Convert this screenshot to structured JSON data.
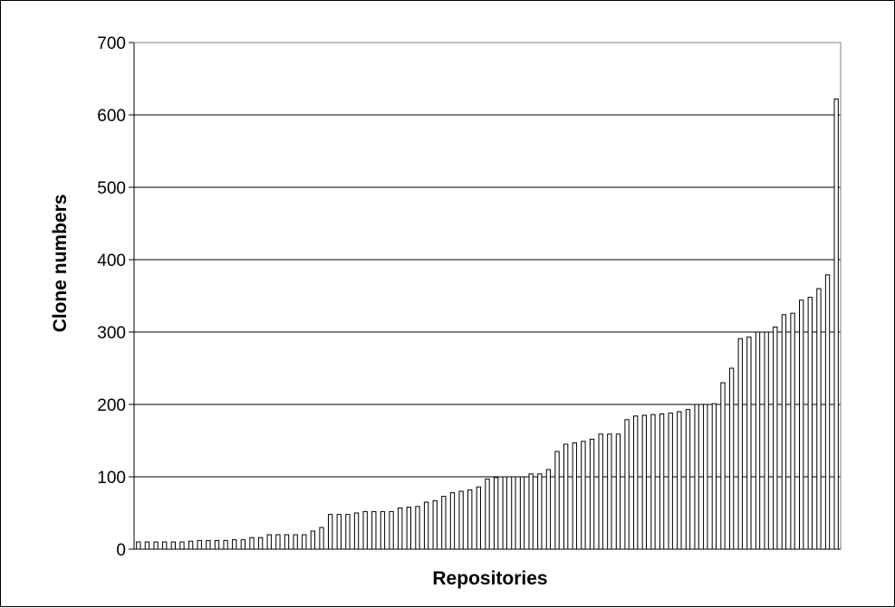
{
  "chart_data": {
    "type": "bar",
    "title": "",
    "xlabel": "Repositories",
    "ylabel": "Clone numbers",
    "ylim": [
      0,
      700
    ],
    "yticks": [
      0,
      100,
      200,
      300,
      400,
      500,
      600,
      700
    ],
    "grid": true,
    "legend": "none",
    "bar_color": "#ffffff",
    "bar_stroke": "#000000",
    "values": [
      10,
      10,
      10,
      10,
      10,
      10,
      11,
      12,
      12,
      12,
      12,
      13,
      13,
      16,
      16,
      20,
      20,
      20,
      20,
      20,
      25,
      30,
      48,
      48,
      48,
      50,
      52,
      52,
      52,
      52,
      57,
      58,
      59,
      65,
      67,
      73,
      78,
      80,
      82,
      86,
      97,
      99,
      100,
      100,
      100,
      104,
      104,
      110,
      135,
      145,
      147,
      149,
      152,
      159,
      159,
      159,
      179,
      184,
      185,
      186,
      187,
      188,
      190,
      193,
      200,
      200,
      201,
      230,
      250,
      291,
      293,
      300,
      300,
      307,
      324,
      326,
      344,
      348,
      360,
      379,
      622
    ]
  }
}
